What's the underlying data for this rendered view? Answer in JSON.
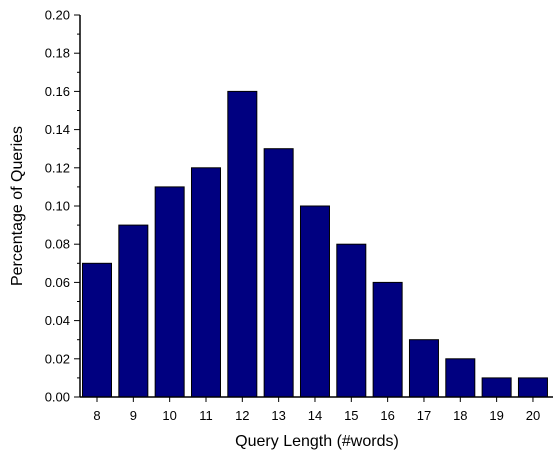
{
  "chart_data": {
    "type": "bar",
    "title": "",
    "xlabel": "Query Length (#words)",
    "ylabel": "Percentage of Queries",
    "categories": [
      "8",
      "9",
      "10",
      "11",
      "12",
      "13",
      "14",
      "15",
      "16",
      "17",
      "18",
      "19",
      "20"
    ],
    "values": [
      0.07,
      0.09,
      0.11,
      0.12,
      0.16,
      0.13,
      0.1,
      0.08,
      0.06,
      0.03,
      0.02,
      0.01,
      0.01
    ],
    "ylim": [
      0,
      0.2
    ],
    "yticks": [
      "0.00",
      "0.02",
      "0.04",
      "0.06",
      "0.08",
      "0.10",
      "0.12",
      "0.14",
      "0.16",
      "0.18",
      "0.20"
    ],
    "bar_color": "#000080",
    "grid": false,
    "legend": "none"
  }
}
